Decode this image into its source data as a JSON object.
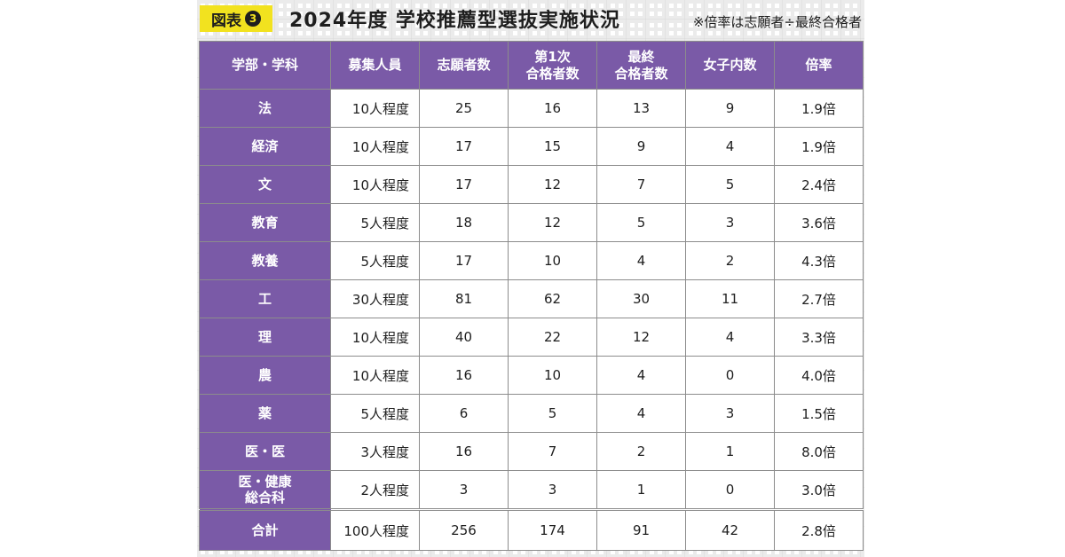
{
  "header": {
    "badge_label": "図表",
    "badge_number": "3",
    "title": "2024年度 学校推薦型選抜実施状況",
    "note": "※倍率は志願者÷最終合格者"
  },
  "colors": {
    "accent_purple": "#7a5aa7",
    "badge_yellow": "#f2e21f"
  },
  "table": {
    "columns": [
      "学部・学科",
      "募集人員",
      "志願者数",
      "第1次\n合格者数",
      "最終\n合格者数",
      "女子内数",
      "倍率"
    ],
    "rows": [
      {
        "dept": "法",
        "quota": "10人程度",
        "applicants": "25",
        "first_pass": "16",
        "final_pass": "13",
        "women": "9",
        "ratio": "1.9倍"
      },
      {
        "dept": "経済",
        "quota": "10人程度",
        "applicants": "17",
        "first_pass": "15",
        "final_pass": "9",
        "women": "4",
        "ratio": "1.9倍"
      },
      {
        "dept": "文",
        "quota": "10人程度",
        "applicants": "17",
        "first_pass": "12",
        "final_pass": "7",
        "women": "5",
        "ratio": "2.4倍"
      },
      {
        "dept": "教育",
        "quota": "5人程度",
        "applicants": "18",
        "first_pass": "12",
        "final_pass": "5",
        "women": "3",
        "ratio": "3.6倍"
      },
      {
        "dept": "教養",
        "quota": "5人程度",
        "applicants": "17",
        "first_pass": "10",
        "final_pass": "4",
        "women": "2",
        "ratio": "4.3倍"
      },
      {
        "dept": "工",
        "quota": "30人程度",
        "applicants": "81",
        "first_pass": "62",
        "final_pass": "30",
        "women": "11",
        "ratio": "2.7倍"
      },
      {
        "dept": "理",
        "quota": "10人程度",
        "applicants": "40",
        "first_pass": "22",
        "final_pass": "12",
        "women": "4",
        "ratio": "3.3倍"
      },
      {
        "dept": "農",
        "quota": "10人程度",
        "applicants": "16",
        "first_pass": "10",
        "final_pass": "4",
        "women": "0",
        "ratio": "4.0倍"
      },
      {
        "dept": "薬",
        "quota": "5人程度",
        "applicants": "6",
        "first_pass": "5",
        "final_pass": "4",
        "women": "3",
        "ratio": "1.5倍"
      },
      {
        "dept": "医・医",
        "quota": "3人程度",
        "applicants": "16",
        "first_pass": "7",
        "final_pass": "2",
        "women": "1",
        "ratio": "8.0倍"
      },
      {
        "dept": "医・健康\n総合科",
        "quota": "2人程度",
        "applicants": "3",
        "first_pass": "3",
        "final_pass": "1",
        "women": "0",
        "ratio": "3.0倍"
      }
    ],
    "total": {
      "dept": "合計",
      "quota": "100人程度",
      "applicants": "256",
      "first_pass": "174",
      "final_pass": "91",
      "women": "42",
      "ratio": "2.8倍"
    }
  }
}
